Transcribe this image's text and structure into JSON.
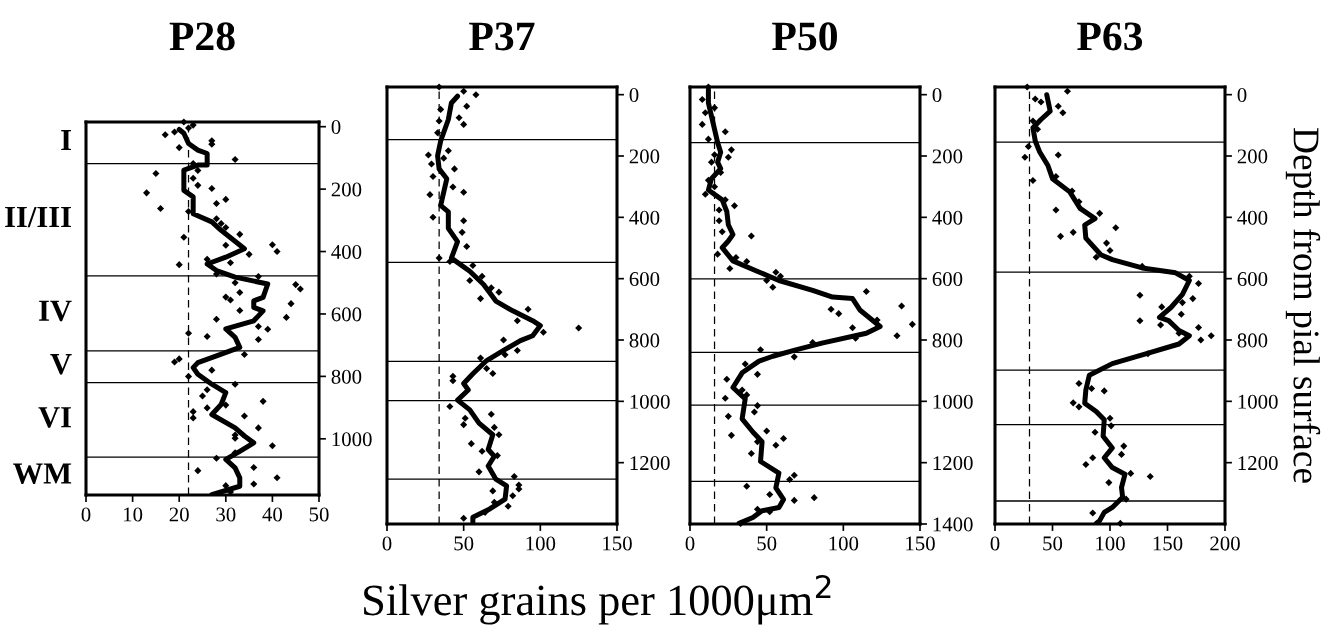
{
  "chart_data": [
    {
      "type": "line",
      "title": "P28",
      "xlim": [
        0,
        50
      ],
      "xticks": [
        0,
        10,
        20,
        30,
        40,
        50
      ],
      "ylim": [
        1180,
        -15
      ],
      "yticks": [
        0,
        200,
        400,
        600,
        800,
        1000
      ],
      "grid": false,
      "series": [
        {
          "type": "line",
          "color": "#000000",
          "marker": "none",
          "x": [
            20,
            21,
            22,
            24,
            26,
            26,
            24,
            21,
            21,
            23,
            23,
            27,
            29,
            34,
            30,
            26,
            28,
            32,
            39,
            38,
            36,
            36,
            38,
            36,
            30,
            32,
            33,
            28,
            24,
            23,
            24,
            27,
            30,
            29,
            27,
            32,
            34,
            36,
            33,
            30,
            32,
            33,
            33,
            27
          ],
          "values": [
            9,
            21,
            54,
            75,
            86,
            123,
            123,
            139,
            204,
            225,
            279,
            305,
            332,
            391,
            418,
            440,
            461,
            482,
            504,
            547,
            558,
            579,
            590,
            622,
            648,
            675,
            707,
            734,
            756,
            772,
            793,
            825,
            852,
            890,
            922,
            965,
            991,
            1013,
            1040,
            1066,
            1093,
            1125,
            1152,
            1179
          ]
        },
        {
          "type": "scatter",
          "color": "#000000",
          "marker": "diamond",
          "x": [
            21,
            23,
            17,
            19,
            22,
            27,
            27,
            20,
            32,
            23,
            15,
            24,
            23,
            24,
            27,
            13,
            30,
            28,
            16,
            22,
            28,
            29,
            30,
            33,
            21,
            40,
            41,
            30,
            35,
            26,
            31,
            20,
            28,
            37,
            32,
            45,
            46,
            33,
            30,
            31,
            44,
            33,
            28,
            43,
            37,
            39,
            22,
            26,
            37,
            34,
            20,
            19,
            27,
            22,
            32,
            26,
            25,
            38,
            30,
            26,
            23,
            23,
            34,
            37,
            32,
            32,
            40,
            32,
            28,
            36,
            24,
            41,
            36,
            30,
            31
          ],
          "values": [
            -15,
            -5,
            26,
            17,
            4,
            45,
            56,
            67,
            105,
            118,
            150,
            140,
            165,
            188,
            198,
            212,
            233,
            246,
            262,
            272,
            295,
            310,
            323,
            345,
            354,
            378,
            400,
            380,
            409,
            425,
            436,
            442,
            472,
            480,
            500,
            506,
            520,
            531,
            546,
            555,
            567,
            589,
            617,
            611,
            640,
            649,
            662,
            672,
            682,
            730,
            744,
            754,
            780,
            800,
            825,
            843,
            863,
            880,
            892,
            901,
            913,
            933,
            927,
            965,
            988,
            998,
            1022,
            1045,
            1062,
            1092,
            1102,
            1125,
            1145,
            1150,
            1170
          ]
        }
      ],
      "ref_lines": [
        {
          "axis": "x",
          "value": 22,
          "color": "#000000",
          "line_style": "dashed"
        },
        {
          "axis": "y",
          "value": 118,
          "color": "#000000"
        },
        {
          "axis": "y",
          "value": 478,
          "color": "#000000"
        },
        {
          "axis": "y",
          "value": 718,
          "color": "#000000"
        },
        {
          "axis": "y",
          "value": 820,
          "color": "#000000"
        },
        {
          "axis": "y",
          "value": 1059,
          "color": "#000000"
        }
      ],
      "annotations": [
        "I",
        "II/III",
        "IV",
        "V",
        "VI",
        "WM"
      ]
    },
    {
      "type": "line",
      "title": "P37",
      "xlabel": "Silver grains per 1000μm$^{2}$",
      "xlim": [
        0,
        150
      ],
      "xticks": [
        0,
        50,
        100,
        150
      ],
      "ylim": [
        1400,
        -25
      ],
      "yticks": [
        0,
        200,
        400,
        600,
        800,
        1000,
        1200
      ],
      "grid": false,
      "series": [
        {
          "type": "line",
          "color": "#000000",
          "marker": "none",
          "x": [
            46,
            42,
            40,
            35,
            33,
            34,
            39,
            35,
            40,
            40,
            46,
            42,
            54,
            63,
            71,
            82,
            95,
            100,
            95,
            87,
            76,
            65,
            56,
            50,
            53,
            46,
            54,
            60,
            69,
            66,
            70,
            66,
            71,
            78,
            77,
            67,
            56,
            56
          ],
          "values": [
            5,
            27,
            81,
            151,
            199,
            242,
            274,
            361,
            382,
            436,
            479,
            533,
            576,
            619,
            673,
            705,
            737,
            753,
            786,
            802,
            834,
            867,
            910,
            942,
            963,
            996,
            1028,
            1071,
            1109,
            1157,
            1179,
            1211,
            1254,
            1276,
            1319,
            1351,
            1378,
            1396
          ]
        },
        {
          "type": "scatter",
          "color": "#000000",
          "marker": "diamond",
          "x": [
            34,
            50,
            58,
            52,
            35,
            47,
            34,
            50,
            33,
            40,
            27,
            29,
            37,
            44,
            30,
            43,
            50,
            28,
            30,
            50,
            49,
            52,
            34,
            41,
            56,
            62,
            54,
            68,
            73,
            61,
            92,
            85,
            125,
            102,
            76,
            85,
            77,
            61,
            65,
            69,
            43,
            43,
            41,
            68,
            51,
            50,
            70,
            73,
            55,
            62,
            72,
            60,
            83,
            86,
            86,
            69,
            82,
            70,
            79,
            64,
            50
          ],
          "values": [
            -25,
            -11,
            0,
            38,
            48,
            75,
            86,
            97,
            124,
            183,
            197,
            226,
            207,
            242,
            267,
            301,
            318,
            326,
            400,
            411,
            449,
            495,
            533,
            544,
            557,
            592,
            606,
            630,
            644,
            665,
            700,
            737,
            761,
            775,
            800,
            834,
            848,
            859,
            893,
            909,
            918,
            933,
            1017,
            1042,
            1055,
            1076,
            1085,
            1109,
            1138,
            1163,
            1177,
            1230,
            1245,
            1273,
            1286,
            1292,
            1308,
            1329,
            1342,
            1362,
            1381
          ]
        }
      ],
      "ref_lines": [
        {
          "axis": "x",
          "value": 34,
          "color": "#000000",
          "line_style": "dashed"
        },
        {
          "axis": "y",
          "value": 147,
          "color": "#000000"
        },
        {
          "axis": "y",
          "value": 547,
          "color": "#000000"
        },
        {
          "axis": "y",
          "value": 870,
          "color": "#000000"
        },
        {
          "axis": "y",
          "value": 998,
          "color": "#000000"
        },
        {
          "axis": "y",
          "value": 1254,
          "color": "#000000"
        }
      ]
    },
    {
      "type": "line",
      "title": "P50",
      "xlim": [
        0,
        150
      ],
      "xticks": [
        0,
        50,
        100,
        150
      ],
      "ylim": [
        1400,
        -25
      ],
      "yticks": [
        0,
        200,
        400,
        600,
        800,
        1000,
        1200,
        1400
      ],
      "grid": false,
      "series": [
        {
          "type": "line",
          "color": "#000000",
          "marker": "none",
          "x": [
            12,
            12,
            15,
            18,
            20,
            18,
            20,
            14,
            12,
            21,
            24,
            25,
            28,
            25,
            21,
            28,
            43,
            58,
            80,
            93,
            106,
            111,
            124,
            115,
            86,
            69,
            54,
            45,
            34,
            28,
            36,
            34,
            41,
            47,
            46,
            58,
            56,
            61,
            58,
            47,
            41,
            32
          ],
          "values": [
            -16,
            27,
            91,
            156,
            188,
            220,
            241,
            274,
            311,
            343,
            381,
            424,
            456,
            477,
            499,
            542,
            574,
            606,
            638,
            660,
            665,
            703,
            756,
            778,
            810,
            832,
            853,
            869,
            907,
            955,
            992,
            1057,
            1100,
            1132,
            1196,
            1234,
            1282,
            1320,
            1346,
            1357,
            1379,
            1398
          ]
        },
        {
          "type": "scatter",
          "color": "#000000",
          "marker": "diamond",
          "x": [
            12,
            8,
            10,
            16,
            8,
            23,
            12,
            27,
            16,
            25,
            14,
            20,
            12,
            16,
            10,
            23,
            29,
            19,
            19,
            21,
            40,
            18,
            30,
            26,
            37,
            56,
            59,
            50,
            54,
            115,
            138,
            92,
            97,
            122,
            145,
            106,
            135,
            108,
            80,
            46,
            68,
            36,
            44,
            24,
            34,
            23,
            37,
            44,
            25,
            42,
            27,
            50,
            61,
            44,
            56,
            40,
            68,
            65,
            37,
            52,
            81,
            68,
            44,
            52,
            33
          ],
          "values": [
            -25,
            16,
            59,
            43,
            97,
            121,
            145,
            180,
            196,
            204,
            220,
            254,
            279,
            300,
            325,
            343,
            362,
            376,
            411,
            447,
            461,
            520,
            531,
            567,
            544,
            579,
            592,
            606,
            628,
            642,
            689,
            700,
            714,
            735,
            749,
            760,
            786,
            794,
            808,
            832,
            855,
            878,
            912,
            928,
            963,
            990,
            979,
            1014,
            1049,
            1035,
            1111,
            1097,
            1121,
            1132,
            1143,
            1170,
            1241,
            1255,
            1277,
            1304,
            1314,
            1323,
            1352,
            1360,
            1398
          ]
        }
      ],
      "ref_lines": [
        {
          "axis": "x",
          "value": 16,
          "color": "#000000",
          "line_style": "dashed"
        },
        {
          "axis": "y",
          "value": 156,
          "color": "#000000"
        },
        {
          "axis": "y",
          "value": 601,
          "color": "#000000"
        },
        {
          "axis": "y",
          "value": 840,
          "color": "#000000"
        },
        {
          "axis": "y",
          "value": 1012,
          "color": "#000000"
        },
        {
          "axis": "y",
          "value": 1261,
          "color": "#000000"
        }
      ]
    },
    {
      "type": "line",
      "title": "P63",
      "ylabel": "Depth from pial surface",
      "xlim": [
        0,
        200
      ],
      "xticks": [
        0,
        50,
        100,
        150,
        200
      ],
      "ylim": [
        1400,
        -25
      ],
      "yticks": [
        0,
        200,
        400,
        600,
        800,
        1000,
        1200
      ],
      "grid": false,
      "series": [
        {
          "type": "line",
          "color": "#000000",
          "marker": "none",
          "x": [
            45,
            48,
            40,
            33,
            35,
            39,
            46,
            50,
            65,
            74,
            87,
            78,
            79,
            92,
            102,
            128,
            157,
            169,
            163,
            153,
            143,
            151,
            160,
            169,
            160,
            131,
            102,
            82,
            79,
            78,
            88,
            95,
            94,
            102,
            95,
            102,
            113,
            110,
            111,
            102,
            95,
            91,
            88
          ],
          "values": [
            0,
            54,
            81,
            108,
            151,
            188,
            231,
            274,
            317,
            371,
            404,
            425,
            468,
            522,
            538,
            565,
            581,
            606,
            651,
            694,
            726,
            737,
            769,
            786,
            813,
            845,
            877,
            915,
            963,
            1006,
            1033,
            1060,
            1114,
            1152,
            1184,
            1216,
            1238,
            1281,
            1313,
            1346,
            1362,
            1389,
            1398
          ]
        },
        {
          "type": "scatter",
          "color": "#000000",
          "marker": "diamond",
          "x": [
            28,
            63,
            35,
            40,
            55,
            59,
            33,
            37,
            29,
            26,
            55,
            53,
            33,
            67,
            73,
            53,
            91,
            68,
            57,
            105,
            97,
            100,
            88,
            128,
            169,
            177,
            126,
            172,
            145,
            163,
            162,
            126,
            144,
            177,
            160,
            188,
            179,
            133,
            73,
            84,
            95,
            68,
            73,
            100,
            101,
            87,
            112,
            110,
            85,
            79,
            118,
            135,
            99,
            114,
            85,
            109
          ],
          "values": [
            -25,
            -11,
            14,
            24,
            38,
            59,
            86,
            113,
            169,
            204,
            197,
            267,
            280,
            314,
            349,
            376,
            387,
            449,
            462,
            434,
            484,
            508,
            530,
            560,
            592,
            616,
            654,
            665,
            692,
            678,
            716,
            737,
            751,
            759,
            778,
            786,
            800,
            845,
            942,
            958,
            966,
            1005,
            1018,
            1055,
            1080,
            1101,
            1146,
            1173,
            1184,
            1206,
            1235,
            1245,
            1265,
            1319,
            1364,
            1398
          ]
        }
      ],
      "ref_lines": [
        {
          "axis": "x",
          "value": 30,
          "color": "#000000",
          "line_style": "dashed"
        },
        {
          "axis": "y",
          "value": 155,
          "color": "#000000"
        },
        {
          "axis": "y",
          "value": 579,
          "color": "#000000"
        },
        {
          "axis": "y",
          "value": 898,
          "color": "#000000"
        },
        {
          "axis": "y",
          "value": 1076,
          "color": "#000000"
        },
        {
          "axis": "y",
          "value": 1325,
          "color": "#000000"
        }
      ]
    }
  ]
}
